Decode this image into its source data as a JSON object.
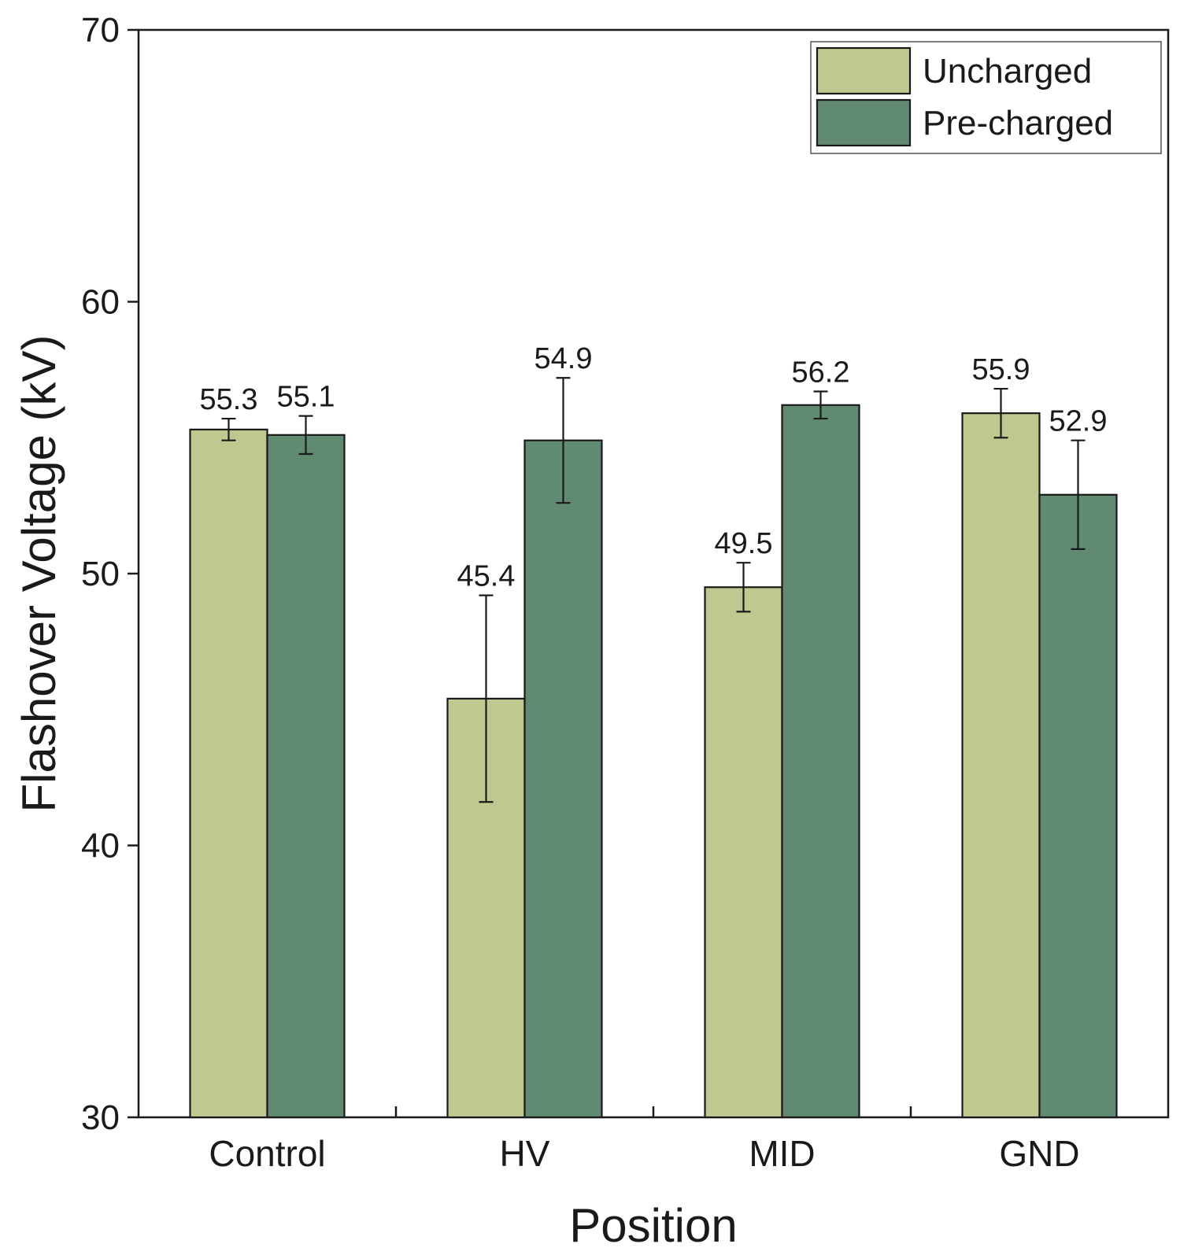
{
  "chart_data": {
    "type": "bar",
    "title": "",
    "xlabel": "Position",
    "ylabel": "Flashover Voltage (kV)",
    "ylim": [
      30,
      70
    ],
    "yticks": [
      30,
      40,
      50,
      60,
      70
    ],
    "categories": [
      "Control",
      "HV",
      "MID",
      "GND"
    ],
    "series": [
      {
        "name": "Uncharged",
        "color": "#bfc98f",
        "values": [
          55.3,
          45.4,
          49.5,
          55.9
        ],
        "errors": [
          0.4,
          3.8,
          0.9,
          0.9
        ],
        "labels": [
          "55.3",
          "45.4",
          "49.5",
          "55.9"
        ]
      },
      {
        "name": "Pre-charged",
        "color": "#618a73",
        "values": [
          55.1,
          54.9,
          56.2,
          52.9
        ],
        "errors": [
          0.7,
          2.3,
          0.5,
          2.0
        ],
        "labels": [
          "55.1",
          "54.9",
          "56.2",
          "52.9"
        ]
      }
    ],
    "legend": "top-right",
    "grid": false
  }
}
